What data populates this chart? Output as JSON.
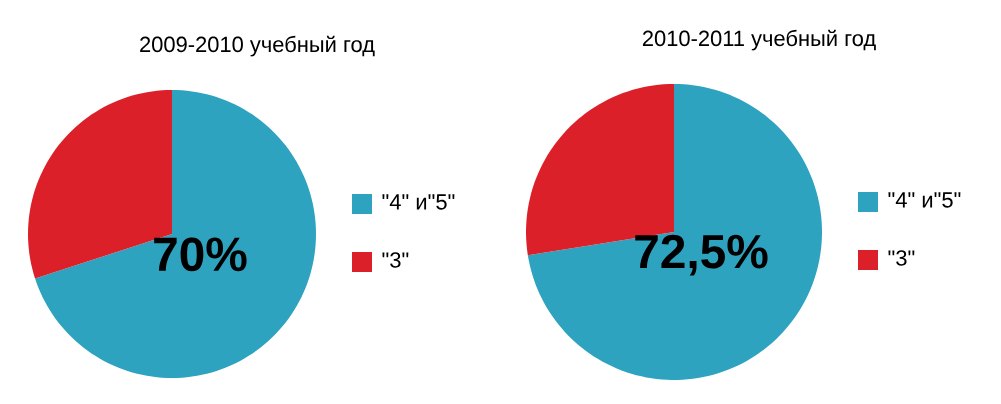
{
  "chart_data": [
    {
      "type": "pie",
      "title": "2009-2010 учебный год",
      "categories": [
        "\"4\" и\"5\"",
        "\"3\""
      ],
      "values": [
        70,
        30
      ],
      "colors": [
        "#2ea3c0",
        "#dc202a"
      ],
      "value_labels": [
        "70%",
        null
      ],
      "legend": "right"
    },
    {
      "type": "pie",
      "title": "2010-2011 учебный год",
      "categories": [
        "\"4\" и\"5\"",
        "\"3\""
      ],
      "values": [
        72.5,
        27.5
      ],
      "colors": [
        "#2ea3c0",
        "#dc202a"
      ],
      "value_labels": [
        "72,5%",
        null
      ],
      "legend": "right"
    }
  ]
}
